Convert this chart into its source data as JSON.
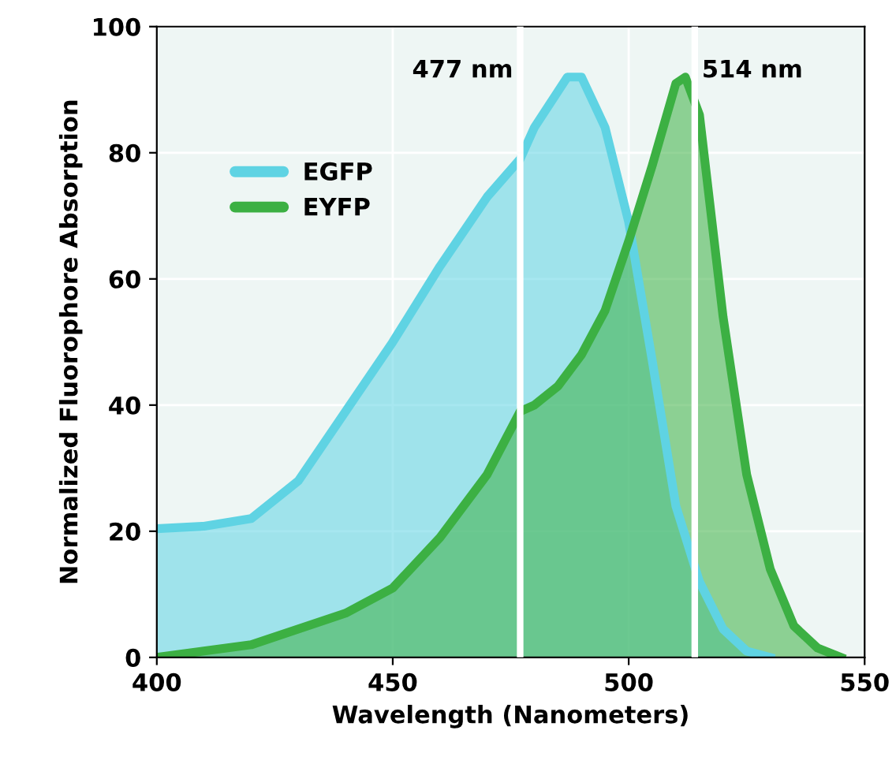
{
  "chart_data": {
    "type": "area",
    "xlabel": "Wavelength (Nanometers)",
    "ylabel": "Normalized Fluorophore Absorption",
    "xlim": [
      400,
      550
    ],
    "xticks": [
      400,
      450,
      500,
      550
    ],
    "ylim": [
      0,
      100
    ],
    "yticks": [
      0,
      20,
      40,
      60,
      80,
      100
    ],
    "grid": true,
    "legend": "top left",
    "series": [
      {
        "name": "EGFP",
        "color": "#5fd3e3",
        "x": [
          400,
          410,
          420,
          430,
          440,
          450,
          460,
          470,
          477,
          480,
          487,
          490,
          495,
          500,
          505,
          510,
          515,
          520,
          525,
          530
        ],
        "values": [
          20.4,
          20.8,
          22,
          28,
          39,
          50,
          62,
          73,
          79,
          84,
          92,
          92,
          84,
          69,
          47,
          24,
          12,
          4.5,
          1,
          0
        ]
      },
      {
        "name": "EYFP",
        "color": "#3cb043",
        "x": [
          400,
          420,
          440,
          450,
          460,
          470,
          477,
          480,
          485,
          490,
          495,
          500,
          505,
          510,
          512,
          515,
          520,
          525,
          530,
          535,
          540,
          545
        ],
        "values": [
          0,
          2,
          7,
          11,
          19,
          29,
          39,
          40,
          43,
          48,
          55,
          66,
          78,
          91,
          92,
          86,
          54,
          29,
          14,
          5,
          1.5,
          0
        ]
      }
    ],
    "ref_lines": [
      {
        "axis": "x",
        "value": 477,
        "label": "477 nm",
        "color": "#ffffff"
      },
      {
        "axis": "x",
        "value": 514,
        "label": "514 nm",
        "color": "#ffffff"
      }
    ]
  }
}
